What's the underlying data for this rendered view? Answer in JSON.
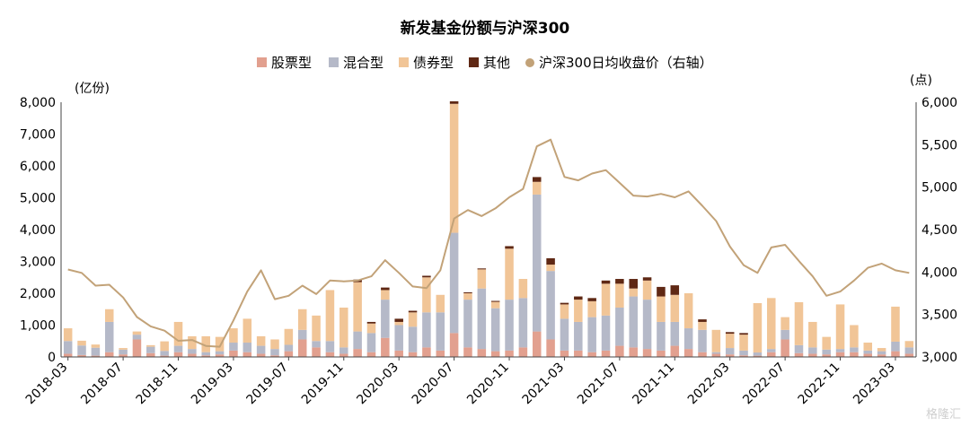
{
  "watermark": "格隆汇",
  "chart_data": {
    "type": "bar",
    "stacked": true,
    "title": "新发基金份额与沪深300",
    "ylabel": "(亿份)",
    "ylabel_right": "(点)",
    "ylim": [
      0,
      8000
    ],
    "ylim_right": [
      3000,
      6000
    ],
    "yticks": [
      "0",
      "1,000",
      "2,000",
      "3,000",
      "4,000",
      "5,000",
      "6,000",
      "7,000",
      "8,000"
    ],
    "yticks_right": [
      "3,000",
      "3,500",
      "4,000",
      "4,500",
      "5,000",
      "5,500",
      "6,000"
    ],
    "legend_position": "top",
    "xtick_labels": [
      "2018-03",
      "2018-07",
      "2018-11",
      "2019-03",
      "2019-07",
      "2019-11",
      "2020-03",
      "2020-07",
      "2020-11",
      "2021-03",
      "2021-07",
      "2021-11",
      "2022-03",
      "2022-07",
      "2022-11",
      "2023-03"
    ],
    "x": [
      "2018-03",
      "2018-04",
      "2018-05",
      "2018-06",
      "2018-07",
      "2018-08",
      "2018-09",
      "2018-10",
      "2018-11",
      "2018-12",
      "2019-01",
      "2019-02",
      "2019-03",
      "2019-04",
      "2019-05",
      "2019-06",
      "2019-07",
      "2019-08",
      "2019-09",
      "2019-10",
      "2019-11",
      "2019-12",
      "2020-01",
      "2020-02",
      "2020-03",
      "2020-04",
      "2020-05",
      "2020-06",
      "2020-07",
      "2020-08",
      "2020-09",
      "2020-10",
      "2020-11",
      "2020-12",
      "2021-01",
      "2021-02",
      "2021-03",
      "2021-04",
      "2021-05",
      "2021-06",
      "2021-07",
      "2021-08",
      "2021-09",
      "2021-10",
      "2021-11",
      "2021-12",
      "2022-01",
      "2022-02",
      "2022-03",
      "2022-04",
      "2022-05",
      "2022-06",
      "2022-07",
      "2022-08",
      "2022-09",
      "2022-10",
      "2022-11",
      "2022-12",
      "2023-01",
      "2023-02",
      "2023-03",
      "2023-04"
    ],
    "series": [
      {
        "name": "股票型",
        "color": "#e2a08f",
        "axis": "left",
        "values": [
          100,
          60,
          40,
          150,
          80,
          550,
          120,
          40,
          150,
          100,
          50,
          80,
          200,
          150,
          100,
          50,
          180,
          550,
          300,
          150,
          100,
          250,
          150,
          600,
          200,
          150,
          300,
          200,
          750,
          300,
          250,
          180,
          200,
          300,
          800,
          550,
          200,
          200,
          150,
          200,
          350,
          300,
          250,
          200,
          350,
          250,
          150,
          100,
          80,
          50,
          40,
          150,
          550,
          120,
          100,
          80,
          150,
          150,
          100,
          80,
          180,
          100
        ]
      },
      {
        "name": "混合型",
        "color": "#b5b9c8",
        "axis": "left",
        "values": [
          400,
          300,
          250,
          950,
          150,
          150,
          200,
          150,
          200,
          150,
          100,
          100,
          250,
          300,
          250,
          200,
          200,
          300,
          200,
          350,
          200,
          550,
          600,
          1200,
          800,
          800,
          1100,
          1200,
          3150,
          1500,
          1900,
          1350,
          1600,
          1550,
          4300,
          2150,
          1000,
          900,
          1100,
          1100,
          1200,
          1600,
          1550,
          900,
          750,
          650,
          700,
          50,
          200,
          150,
          100,
          100,
          300,
          250,
          200,
          150,
          100,
          150,
          100,
          100,
          300,
          200
        ]
      },
      {
        "name": "债券型",
        "color": "#f1c597",
        "axis": "left",
        "values": [
          400,
          150,
          100,
          400,
          50,
          100,
          50,
          300,
          750,
          400,
          500,
          450,
          450,
          750,
          300,
          300,
          500,
          650,
          800,
          1600,
          1250,
          1550,
          300,
          300,
          100,
          450,
          1100,
          550,
          4050,
          200,
          600,
          200,
          1600,
          600,
          400,
          200,
          450,
          700,
          500,
          1000,
          750,
          250,
          600,
          800,
          850,
          1100,
          250,
          700,
          450,
          500,
          1550,
          1600,
          400,
          1350,
          800,
          400,
          1400,
          700,
          250,
          100,
          1100,
          200
        ]
      },
      {
        "name": "其他",
        "color": "#5f2814",
        "axis": "left",
        "values": [
          0,
          0,
          0,
          0,
          0,
          0,
          0,
          0,
          0,
          0,
          0,
          0,
          0,
          0,
          0,
          0,
          0,
          0,
          0,
          0,
          0,
          80,
          50,
          80,
          100,
          50,
          50,
          0,
          80,
          30,
          30,
          30,
          80,
          0,
          150,
          200,
          50,
          100,
          100,
          100,
          150,
          300,
          100,
          300,
          300,
          0,
          80,
          0,
          50,
          50,
          0,
          0,
          0,
          0,
          0,
          0,
          0,
          0,
          0,
          0,
          0,
          0
        ]
      },
      {
        "name": "沪深300日均收盘价（右轴）",
        "color": "#c2a278",
        "axis": "right",
        "type": "line",
        "values": [
          4030,
          3990,
          3840,
          3850,
          3700,
          3470,
          3360,
          3310,
          3190,
          3200,
          3130,
          3120,
          3430,
          3770,
          4020,
          3680,
          3720,
          3840,
          3740,
          3900,
          3890,
          3900,
          3950,
          4140,
          3990,
          3830,
          3810,
          4020,
          4630,
          4730,
          4660,
          4750,
          4880,
          4980,
          5480,
          5560,
          5120,
          5080,
          5160,
          5200,
          5050,
          4900,
          4890,
          4920,
          4880,
          4950,
          4780,
          4600,
          4300,
          4080,
          3990,
          4290,
          4320,
          4130,
          3950,
          3720,
          3770,
          3900,
          4050,
          4100,
          4020,
          3990
        ]
      }
    ]
  }
}
